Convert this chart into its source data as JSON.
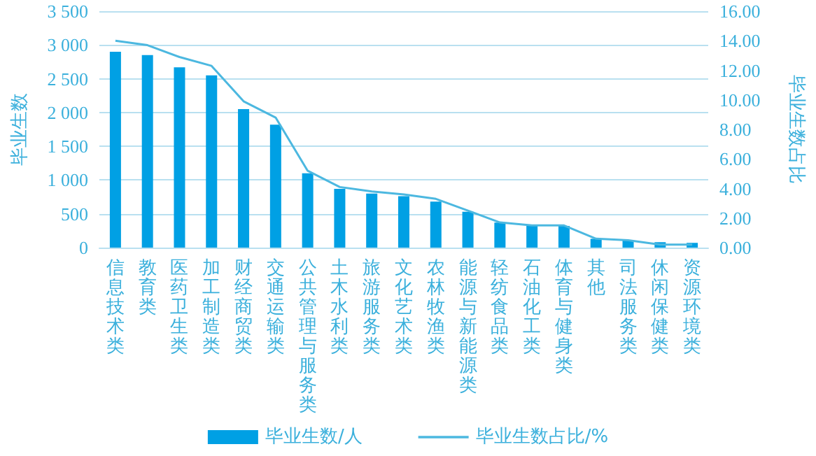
{
  "chart_data": {
    "type": "bar",
    "categories": [
      "信息技术类",
      "教育类",
      "医药卫生类",
      "加工制造类",
      "财经商贸类",
      "交通运输类",
      "公共管理与服务类",
      "土木水利类",
      "旅游服务类",
      "文化艺术类",
      "农林牧渔类",
      "能源与新能源类",
      "轻纺食品类",
      "石油化工类",
      "体育与健身类",
      "其他",
      "司法服务类",
      "休闲保健类",
      "资源环境类"
    ],
    "series": [
      {
        "name": "毕业生数/人",
        "color": "#00a0e4",
        "values": [
          2900,
          2850,
          2670,
          2550,
          2050,
          1820,
          1100,
          870,
          800,
          760,
          680,
          530,
          370,
          330,
          320,
          130,
          110,
          80,
          70
        ]
      },
      {
        "name": "毕业生数占比/%",
        "type": "line",
        "axis": "y2",
        "color": "#4cb8e0",
        "values": [
          14.0,
          13.7,
          12.9,
          12.3,
          9.9,
          8.8,
          5.2,
          4.1,
          3.8,
          3.6,
          3.3,
          2.5,
          1.7,
          1.5,
          1.5,
          0.6,
          0.5,
          0.2,
          0.2
        ]
      }
    ],
    "ylabel": "毕业生数",
    "y2label": "毕业生数占比",
    "ylim": [
      0,
      3500
    ],
    "yticks": [
      {
        "value": 0,
        "label": "0"
      },
      {
        "value": 500,
        "label": "500"
      },
      {
        "value": 1000,
        "label": "1 000"
      },
      {
        "value": 1500,
        "label": "1 500"
      },
      {
        "value": 2000,
        "label": "2 000"
      },
      {
        "value": 2500,
        "label": "2 500"
      },
      {
        "value": 3000,
        "label": "3 000"
      },
      {
        "value": 3500,
        "label": "3 500"
      }
    ],
    "y2lim": [
      0,
      16
    ],
    "y2ticks": [
      {
        "value": 0,
        "label": "0.00"
      },
      {
        "value": 2,
        "label": "2.00"
      },
      {
        "value": 4,
        "label": "4.00"
      },
      {
        "value": 6,
        "label": "6.00"
      },
      {
        "value": 8,
        "label": "8.00"
      },
      {
        "value": 10,
        "label": "10.00"
      },
      {
        "value": 12,
        "label": "12.00"
      },
      {
        "value": 14,
        "label": "14.00"
      },
      {
        "value": 16,
        "label": "16.00"
      }
    ],
    "grid": "y",
    "legend": "bottom",
    "marker": "none"
  }
}
